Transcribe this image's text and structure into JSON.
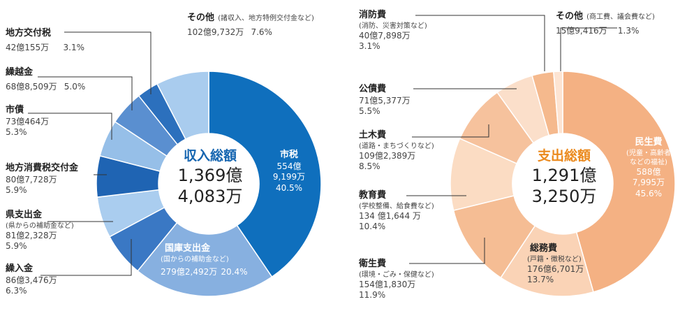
{
  "chart_data": [
    {
      "type": "pie",
      "center_title": "収入総額",
      "total": [
        "1,369億",
        "4,083万"
      ],
      "title_color": "#1565b0",
      "slices": [
        {
          "name": "市税",
          "value_label": [
            "554億",
            "9,199万"
          ],
          "percent": 40.5,
          "percent_label": "40.5%",
          "color": "#0f6fbd"
        },
        {
          "name": "国庫支出金",
          "note": "(国からの補助金など)",
          "value_label": "279億2,492万",
          "percent": 20.4,
          "percent_label": "20.4%",
          "color": "#87b0e0"
        },
        {
          "name": "繰入金",
          "value_label": "86億3,476万",
          "percent": 6.3,
          "percent_label": "6.3%",
          "color": "#3a78c4"
        },
        {
          "name": "県支出金",
          "note": "(県からの補助金など)",
          "value_label": "81億2,328万",
          "percent": 5.9,
          "percent_label": "5.9%",
          "color": "#aacdef"
        },
        {
          "name": "地方消費税交付金",
          "value_label": "80億7,728万",
          "percent": 5.9,
          "percent_label": "5.9%",
          "color": "#1f64b3"
        },
        {
          "name": "市債",
          "value_label": "73億464万",
          "percent": 5.3,
          "percent_label": "5.3%",
          "color": "#96bfe8"
        },
        {
          "name": "繰越金",
          "value_label": "68億8,509万",
          "percent": 5.0,
          "percent_label": "5.0%",
          "color": "#5a8fd0"
        },
        {
          "name": "地方交付税",
          "value_label": "42億155万",
          "percent": 3.1,
          "percent_label": "3.1%",
          "color": "#2c70bd"
        },
        {
          "name": "その他",
          "note": "(諸収入、地方特例交付金など)",
          "value_label": "102億9,732万",
          "percent": 7.6,
          "percent_label": "7.6%",
          "color": "#a9ccee"
        }
      ]
    },
    {
      "type": "pie",
      "center_title": "支出総額",
      "total": [
        "1,291億",
        "3,250万"
      ],
      "title_color": "#eb8a1e",
      "slices": [
        {
          "name": "民生費",
          "note": [
            "(児童・高齢者",
            "などの福祉)"
          ],
          "value_label": [
            "588億",
            "7,995万"
          ],
          "percent": 45.6,
          "percent_label": "45.6%",
          "color": "#f4b183"
        },
        {
          "name": "総務費",
          "note": "(戸籍・徴税など)",
          "value_label": "176億6,701万",
          "percent": 13.7,
          "percent_label": "13.7%",
          "color": "#fad3b6"
        },
        {
          "name": "衛生費",
          "note": "(環境・ごみ・保健など)",
          "value_label": "154億1,830万",
          "percent": 11.9,
          "percent_label": "11.9%",
          "color": "#f5bd94"
        },
        {
          "name": "教育費",
          "note": "(学校整備、給食費など)",
          "value_label": "134 億1,644 万",
          "percent": 10.4,
          "percent_label": "10.4%",
          "color": "#fbdcc3"
        },
        {
          "name": "土木費",
          "note": "(道路・まちづくりなど)",
          "value_label": "109億2,389万",
          "percent": 8.5,
          "percent_label": "8.5%",
          "color": "#f6c29d"
        },
        {
          "name": "公債費",
          "value_label": "71億5,377万",
          "percent": 5.5,
          "percent_label": "5.5%",
          "color": "#fbdfca"
        },
        {
          "name": "消防費",
          "note": "(消防、災害対策など)",
          "value_label": "40億7,898万",
          "percent": 3.1,
          "percent_label": "3.1%",
          "color": "#f5b98d"
        },
        {
          "name": "その他",
          "note": "(商工費、議会費など)",
          "value_label": "15億9,416万",
          "percent": 1.3,
          "percent_label": "1.3%",
          "color": "#fde4d2"
        }
      ]
    }
  ]
}
